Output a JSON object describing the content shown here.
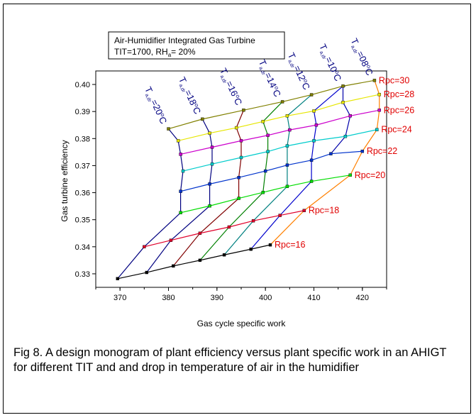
{
  "caption": "Fig 8. A design monogram of plant efficiency versus plant specific work in an AHIGT  for different TIT and and drop in temperature of air in the humidifier",
  "chart_data": {
    "type": "line",
    "title_lines": [
      "Air-Humidifier Integrated Gas Turbine",
      "TIT=1700, RH",
      "a",
      "= 20%"
    ],
    "xlabel": "Gas cycle specific work",
    "ylabel": "Gas turbine efficiency",
    "xlim": [
      365,
      425
    ],
    "ylim": [
      0.325,
      0.405
    ],
    "xticks": [
      370,
      380,
      390,
      400,
      410,
      420
    ],
    "yticks": [
      0.33,
      0.34,
      0.35,
      0.36,
      0.37,
      0.38,
      0.39,
      0.4
    ],
    "xtick_labels": [
      "370",
      "380",
      "390",
      "400",
      "410",
      "420"
    ],
    "ytick_labels": [
      "0.33",
      "0.34",
      "0.35",
      "0.36",
      "0.37",
      "0.38",
      "0.39",
      "0.40"
    ],
    "grid": false,
    "temp_label_prefix": "T",
    "temp_label_sub": "a,dr",
    "temp_label_unit": "C",
    "temp_label_eq": "=",
    "temperatures": [
      {
        "value": "20",
        "color": "#000080"
      },
      {
        "value": "18",
        "color": "#000080"
      },
      {
        "value": "16",
        "color": "#000080"
      },
      {
        "value": "14",
        "color": "#000080"
      },
      {
        "value": "12",
        "color": "#000080"
      },
      {
        "value": "10",
        "color": "#000080"
      },
      {
        "value": "08",
        "color": "#000080"
      }
    ],
    "rpc_series": [
      {
        "name": "Rpc=16",
        "color": "#000000",
        "x": [
          369.5,
          375.5,
          381,
          386.5,
          391.5,
          397,
          401
        ],
        "y": [
          0.3282,
          0.3305,
          0.3329,
          0.335,
          0.337,
          0.3391,
          0.3407
        ]
      },
      {
        "name": "Rpc=18",
        "color": "#e0002a",
        "x": [
          375,
          380.5,
          386.5,
          392.5,
          397.5,
          403,
          408
        ],
        "y": [
          0.34,
          0.3424,
          0.345,
          0.3473,
          0.3496,
          0.3516,
          0.3534
        ]
      },
      {
        "name": "Rpc=20",
        "color": "#00dd00",
        "x": [
          382.5,
          388.5,
          394.5,
          399.5,
          404.5,
          409.5,
          417.5
        ],
        "y": [
          0.3526,
          0.3551,
          0.3579,
          0.3601,
          0.3623,
          0.3642,
          0.3665
        ]
      },
      {
        "name": "Rpc=22",
        "color": "#0033cc",
        "x": [
          382.5,
          388.5,
          394.5,
          400,
          404.5,
          409.5,
          413.5,
          420
        ],
        "y": [
          0.3605,
          0.3632,
          0.3656,
          0.368,
          0.3702,
          0.372,
          0.3744,
          0.3753
        ]
      },
      {
        "name": "Rpc=24",
        "color": "#00cccc",
        "x": [
          383,
          389,
          395,
          400.5,
          404.5,
          410,
          416.5,
          423
        ],
        "y": [
          0.368,
          0.3706,
          0.373,
          0.3752,
          0.3773,
          0.3792,
          0.3808,
          0.3833
        ]
      },
      {
        "name": "Rpc=26",
        "color": "#cc00cc",
        "x": [
          382.5,
          389,
          395,
          400.5,
          405,
          410.5,
          417.5,
          423.5
        ],
        "y": [
          0.3742,
          0.3768,
          0.3792,
          0.3812,
          0.3832,
          0.385,
          0.3884,
          0.3905
        ]
      },
      {
        "name": "Rpc=28",
        "color": "#e6e600",
        "x": [
          382,
          388.5,
          394,
          399.5,
          404.5,
          410,
          416,
          423.5
        ],
        "y": [
          0.3792,
          0.382,
          0.384,
          0.3863,
          0.3884,
          0.3902,
          0.3934,
          0.3963
        ]
      },
      {
        "name": "Rpc=30",
        "color": "#808000",
        "x": [
          380,
          387,
          395.5,
          403.5,
          409.5,
          416,
          422.5
        ],
        "y": [
          0.3836,
          0.3872,
          0.3905,
          0.3936,
          0.3962,
          0.3994,
          0.4015
        ]
      }
    ],
    "temp_series": [
      {
        "color": "#000080",
        "x": [
          369.5,
          375,
          382.5,
          382.5,
          383,
          382.5,
          382,
          380
        ],
        "y": [
          0.3282,
          0.34,
          0.3526,
          0.3605,
          0.368,
          0.3742,
          0.3792,
          0.3836
        ]
      },
      {
        "color": "#000080",
        "x": [
          375.5,
          380.5,
          388.5,
          388.5,
          389,
          389,
          388.5,
          387
        ],
        "y": [
          0.3305,
          0.3424,
          0.3551,
          0.3632,
          0.3706,
          0.3768,
          0.382,
          0.3872
        ]
      },
      {
        "color": "#800000",
        "x": [
          381,
          386.5,
          394.5,
          394.5,
          395,
          395,
          394,
          395.5
        ],
        "y": [
          0.3329,
          0.345,
          0.3579,
          0.3656,
          0.373,
          0.3792,
          0.384,
          0.3905
        ]
      },
      {
        "color": "#008000",
        "x": [
          386.5,
          392.5,
          399.5,
          400,
          400.5,
          400.5,
          399.5,
          403.5
        ],
        "y": [
          0.335,
          0.3473,
          0.3601,
          0.368,
          0.3752,
          0.3812,
          0.3863,
          0.3936
        ]
      },
      {
        "color": "#008080",
        "x": [
          391.5,
          397.5,
          404.5,
          404.5,
          404.5,
          405,
          404.5,
          409.5
        ],
        "y": [
          0.337,
          0.3496,
          0.3623,
          0.3702,
          0.3773,
          0.3832,
          0.3884,
          0.3962
        ]
      },
      {
        "color": "#0000cc",
        "x": [
          397,
          403,
          409.5,
          409.5,
          410,
          410.5,
          410,
          416
        ],
        "y": [
          0.3391,
          0.3516,
          0.3642,
          0.372,
          0.3792,
          0.385,
          0.3902,
          0.3994
        ]
      },
      {
        "color": "#ff8000",
        "x": [
          401,
          408,
          417.5,
          420,
          423,
          423.5,
          423.5,
          422.5
        ],
        "y": [
          0.3407,
          0.3534,
          0.3665,
          0.3753,
          0.3833,
          0.3905,
          0.3963,
          0.4015
        ]
      }
    ],
    "inner_edge": {
      "color": "#0000aa",
      "x": [
        413.5,
        416.5,
        417.5,
        416,
        416,
        416.5
      ],
      "y": [
        0.3744,
        0.3808,
        0.3884,
        0.3934,
        0.3994,
        0.3994
      ]
    }
  }
}
